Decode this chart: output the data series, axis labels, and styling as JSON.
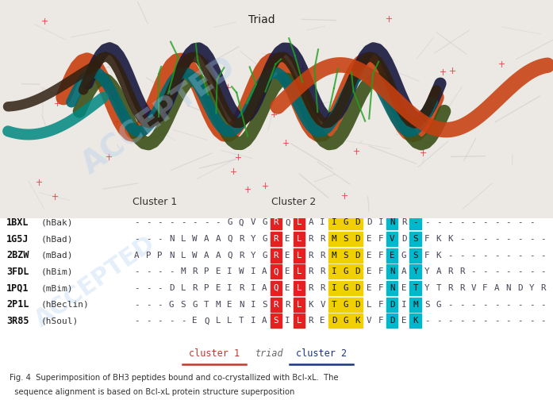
{
  "triad_label": "Triad",
  "cluster1_label": "Cluster 1",
  "cluster2_label": "Cluster 2",
  "sequences": [
    {
      "pdb": "1BXL",
      "species": "(hBak)",
      "seq": "--------GQVGRQLAIIGDDINR-----------"
    },
    {
      "pdb": "1G5J",
      "species": "(hBad)",
      "seq": "---NLWAAQRYGRELRRMSDEFVDSFKK--------"
    },
    {
      "pdb": "2BZW",
      "species": "(mBad)",
      "seq": "APPNLWAAQRYGRELRRMSDEFEGSFK---------"
    },
    {
      "pdb": "3FDL",
      "species": "(hBim)",
      "seq": "----MRPEIWIAQELRRIGDEFNAYYARR-------"
    },
    {
      "pdb": "1PQ1",
      "species": "(mBim)",
      "seq": "---DLRPEIRIAQELRRIGDEFNETYTRRVFANDYR"
    },
    {
      "pdb": "2P1L",
      "species": "(hBeclin)",
      "seq": "---GSGTMENISRRLKVTGDLFDIMSG---------"
    },
    {
      "pdb": "3R85",
      "species": "(hSoul)",
      "seq": "-----EQLLTIASILREDGKVFDEK-----------"
    }
  ],
  "highlight_columns": [
    {
      "col": 12,
      "color": "#e62020"
    },
    {
      "col": 14,
      "color": "#e62020"
    },
    {
      "col": 17,
      "color": "#f0d000"
    },
    {
      "col": 18,
      "color": "#f0d000"
    },
    {
      "col": 19,
      "color": "#f0d000"
    },
    {
      "col": 22,
      "color": "#00b8cc"
    },
    {
      "col": 24,
      "color": "#00b8cc"
    }
  ],
  "legend": {
    "cluster1_color": "#c0392b",
    "triad_color": "#666666",
    "cluster2_color": "#1a3580",
    "cluster1_text": "cluster 1",
    "triad_text": "triad",
    "cluster2_text": "cluster 2"
  },
  "caption_line1": "Fig. 4  Superimposition of BH3 peptides bound and co-crystallized with Bcl-xL.  The",
  "caption_line2": "  sequence alignment is based on Bcl-xL protein structure superposition",
  "watermark": "ACCEPTED",
  "mol_bg_color": "#e8e4e0",
  "mol_bg_color2": "#d8d4d0"
}
